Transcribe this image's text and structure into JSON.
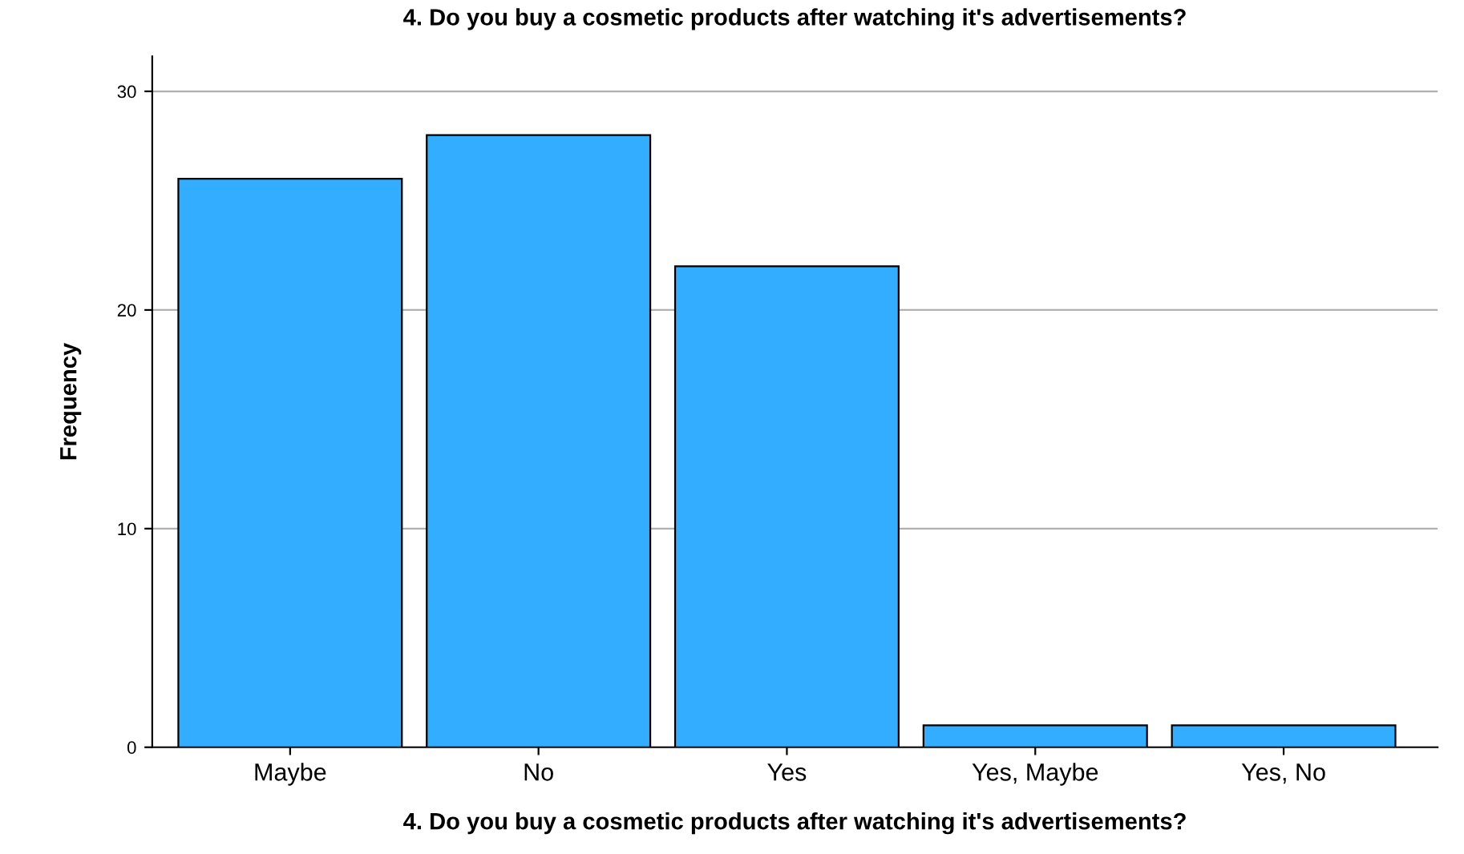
{
  "chart_data": {
    "type": "bar",
    "title": "4. Do you buy a cosmetic products after watching it's advertisements?",
    "xlabel": "4. Do you buy a cosmetic products after watching it's advertisements?",
    "ylabel": "Frequency",
    "categories": [
      "Maybe",
      "No",
      "Yes",
      "Yes, Maybe",
      "Yes, No"
    ],
    "values": [
      26,
      28,
      22,
      1,
      1
    ],
    "color": "#33adff",
    "ylim": [
      0,
      31.6
    ],
    "yticks": [
      0,
      10,
      20,
      30
    ],
    "grid": "y",
    "legend": false
  }
}
